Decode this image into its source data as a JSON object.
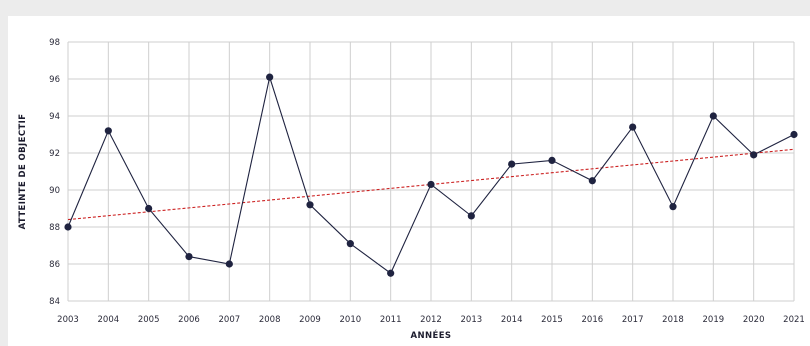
{
  "chart_data": {
    "type": "line",
    "xlabel": "ANNÉES",
    "ylabel": "ATTEINTE DE OBJECTIF",
    "x": [
      2003,
      2004,
      2005,
      2006,
      2007,
      2008,
      2009,
      2010,
      2011,
      2012,
      2013,
      2014,
      2015,
      2016,
      2017,
      2018,
      2019,
      2020,
      2021
    ],
    "series": [
      {
        "values": [
          88.0,
          93.2,
          89.0,
          86.4,
          86.0,
          96.1,
          89.2,
          87.1,
          85.5,
          90.3,
          88.6,
          91.4,
          91.6,
          90.5,
          93.4,
          89.1,
          94.0,
          91.9,
          93.0
        ],
        "color": "#1f2340",
        "marker": "circle"
      }
    ],
    "trendline": {
      "style": "dashed",
      "color": "#cc2222",
      "start": [
        2003,
        88.4
      ],
      "end": [
        2021,
        92.2
      ]
    },
    "xlim": [
      2003,
      2021
    ],
    "ylim": [
      84,
      98
    ],
    "yticks": [
      84,
      86,
      88,
      90,
      92,
      94,
      96,
      98
    ],
    "xticks": [
      2003,
      2004,
      2005,
      2006,
      2007,
      2008,
      2009,
      2010,
      2011,
      2012,
      2013,
      2014,
      2015,
      2016,
      2017,
      2018,
      2019,
      2020,
      2021
    ],
    "grid": true,
    "gridColor": "#cfcfcf"
  }
}
